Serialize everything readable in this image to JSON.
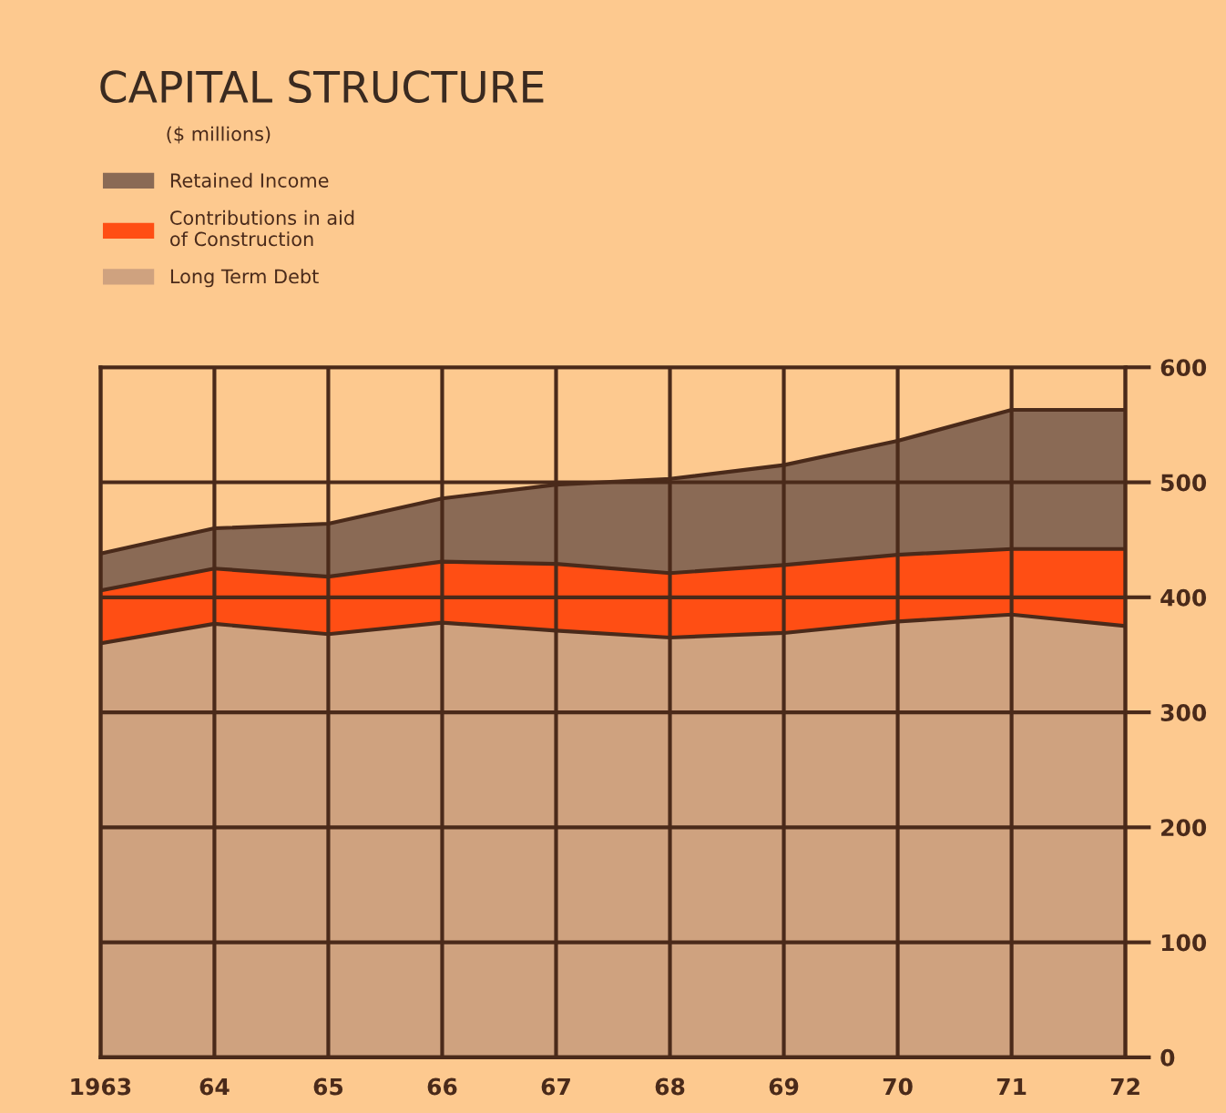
{
  "chart_data": {
    "type": "area",
    "stacked": true,
    "title": "CAPITAL STRUCTURE",
    "subtitle": "($ millions)",
    "categories": [
      "1963",
      "64",
      "65",
      "66",
      "67",
      "68",
      "69",
      "70",
      "71",
      "72"
    ],
    "series": [
      {
        "name": "Long Term Debt",
        "color": "#cfa27f",
        "values": [
          360,
          377,
          368,
          378,
          371,
          365,
          369,
          379,
          385,
          375
        ]
      },
      {
        "name": "Contributions in aid\nof Construction",
        "color": "#ff4e14",
        "values": [
          46,
          48,
          50,
          53,
          58,
          56,
          59,
          58,
          57,
          67
        ]
      },
      {
        "name": "Retained Income",
        "color": "#8a6a55",
        "values": [
          32,
          35,
          46,
          55,
          69,
          82,
          87,
          99,
          121,
          121
        ]
      }
    ],
    "ylim": [
      0,
      600
    ],
    "yticks": [
      0,
      100,
      200,
      300,
      400,
      500,
      600
    ],
    "grid": true,
    "legend": "top left"
  }
}
